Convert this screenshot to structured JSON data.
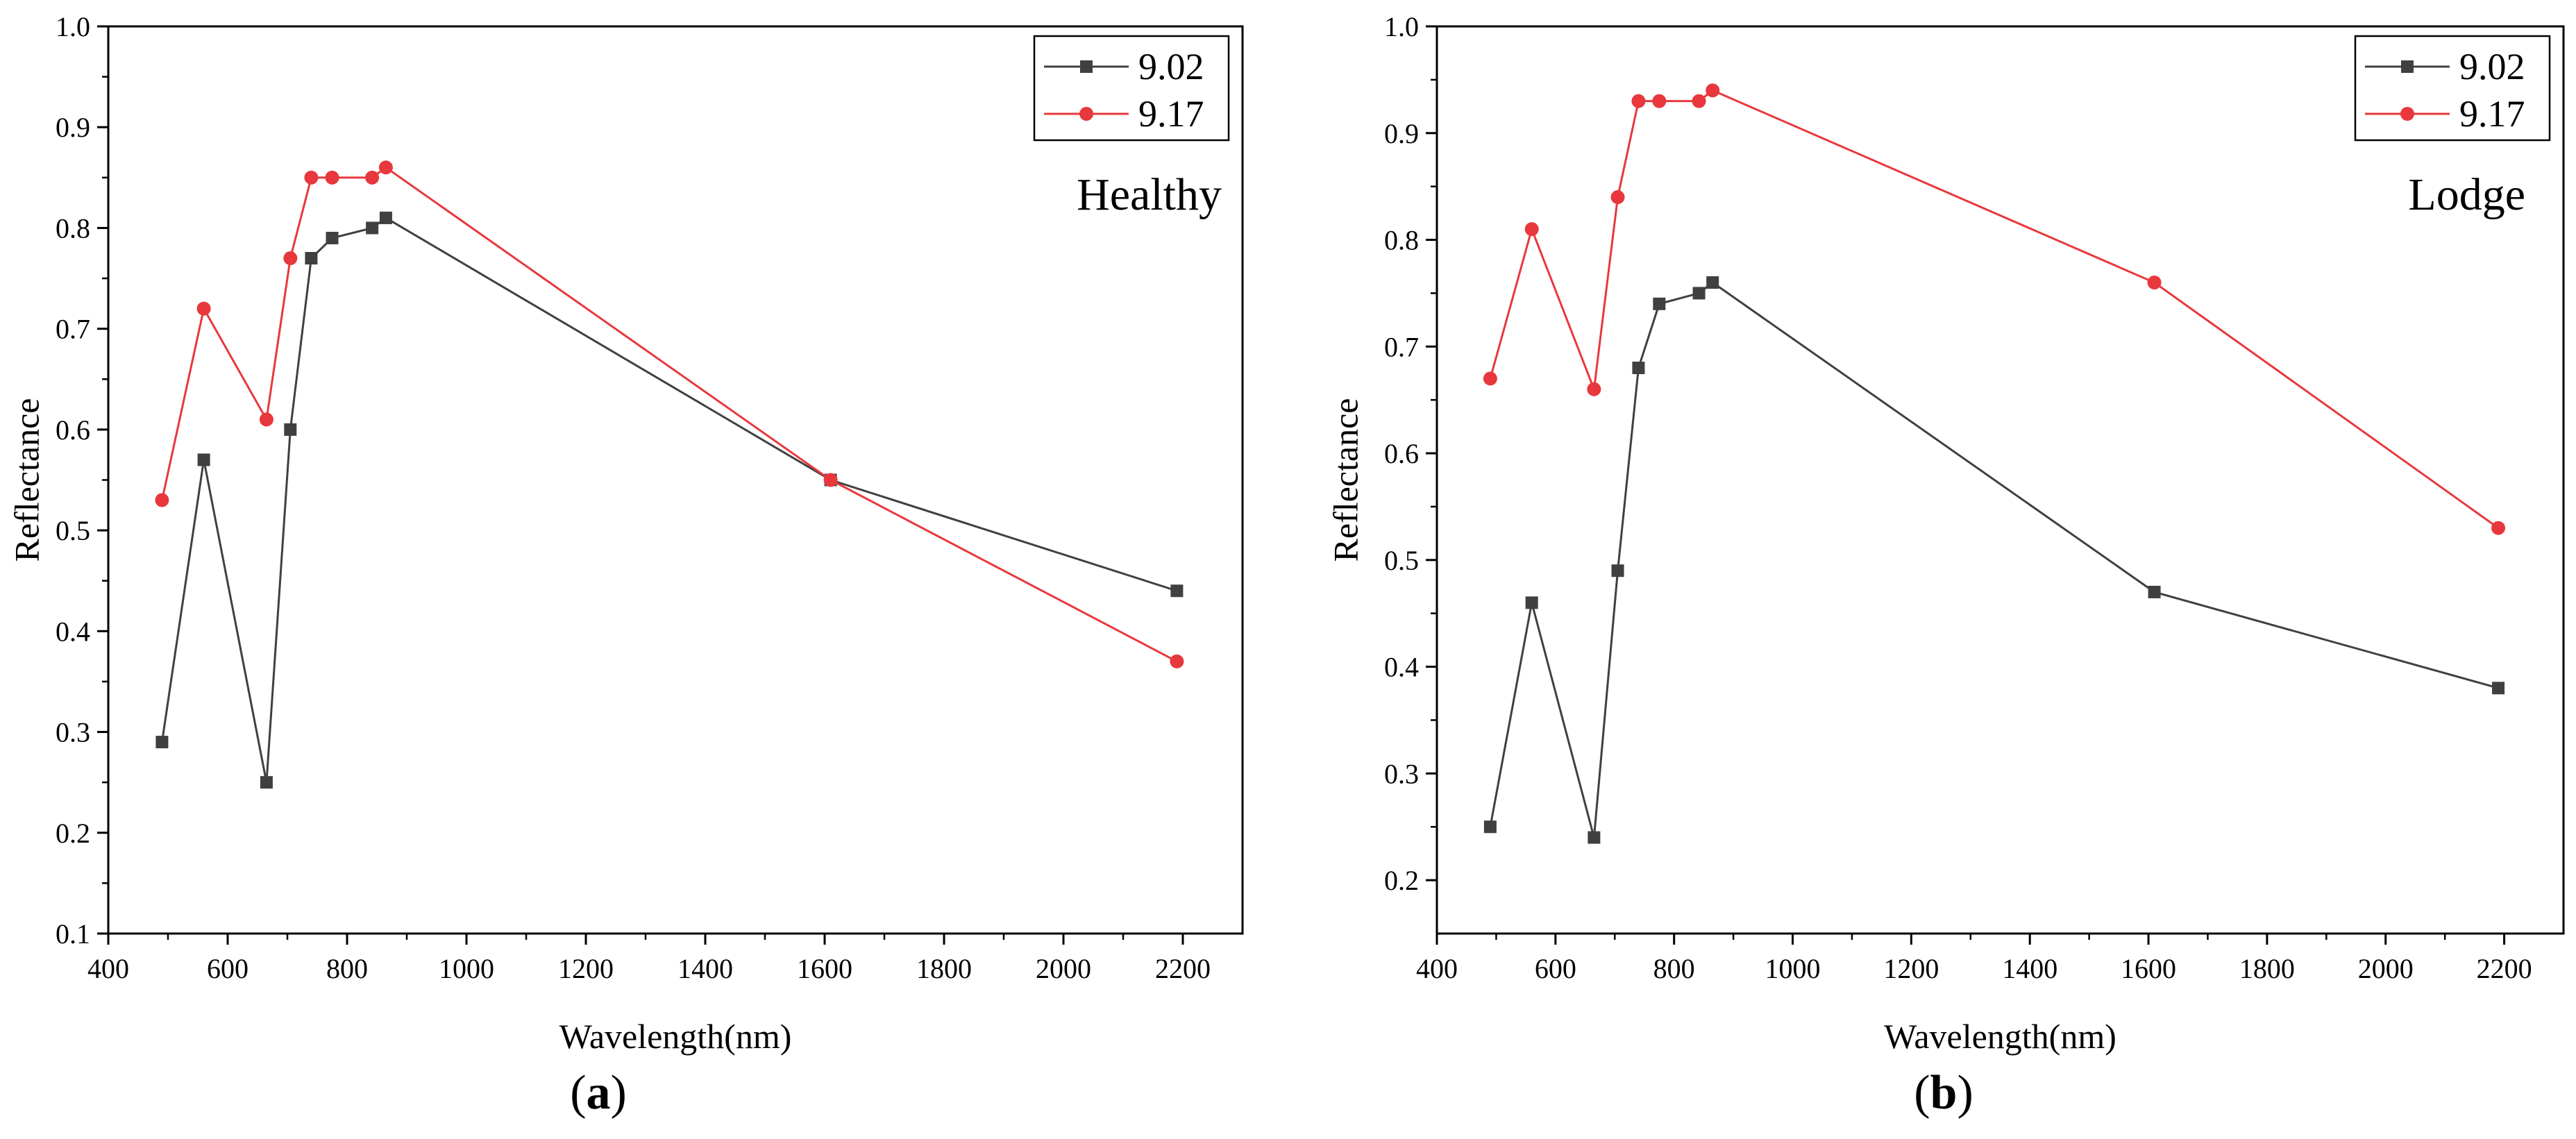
{
  "chart_data": [
    {
      "type": "line",
      "panel_label": "a",
      "annotation": "Healthy",
      "xlabel": "Wavelength(nm)",
      "ylabel": "Reflectance",
      "xlim": [
        400,
        2300
      ],
      "ylim": [
        0.1,
        1.0
      ],
      "xticks": [
        400,
        600,
        800,
        1000,
        1200,
        1400,
        1600,
        1800,
        2000,
        2200
      ],
      "yticks": [
        0.1,
        0.2,
        0.3,
        0.4,
        0.5,
        0.6,
        0.7,
        0.8,
        0.9,
        1.0
      ],
      "legend_position": "top-right",
      "grid": false,
      "x": [
        490,
        560,
        665,
        705,
        740,
        775,
        842,
        865,
        1610,
        2190
      ],
      "series": [
        {
          "name": "9.02",
          "color": "#404040",
          "marker": "square",
          "values": [
            0.29,
            0.57,
            0.25,
            0.6,
            0.77,
            0.79,
            0.8,
            0.81,
            0.55,
            0.44
          ]
        },
        {
          "name": "9.17",
          "color": "#e8383d",
          "marker": "circle",
          "values": [
            0.53,
            0.72,
            0.61,
            0.77,
            0.85,
            0.85,
            0.85,
            0.86,
            0.55,
            0.37
          ]
        }
      ]
    },
    {
      "type": "line",
      "panel_label": "b",
      "annotation": "Lodge",
      "xlabel": "Wavelength(nm)",
      "ylabel": "Reflectance",
      "xlim": [
        400,
        2300
      ],
      "ylim": [
        0.15,
        1.0
      ],
      "xticks": [
        400,
        600,
        800,
        1000,
        1200,
        1400,
        1600,
        1800,
        2000,
        2200
      ],
      "yticks": [
        0.2,
        0.3,
        0.4,
        0.5,
        0.6,
        0.7,
        0.8,
        0.9,
        1.0
      ],
      "legend_position": "top-right",
      "grid": false,
      "x": [
        490,
        560,
        665,
        705,
        740,
        775,
        842,
        865,
        1610,
        2190
      ],
      "series": [
        {
          "name": "9.02",
          "color": "#404040",
          "marker": "square",
          "values": [
            0.25,
            0.46,
            0.24,
            0.49,
            0.68,
            0.74,
            0.75,
            0.76,
            0.47,
            0.38
          ]
        },
        {
          "name": "9.17",
          "color": "#e8383d",
          "marker": "circle",
          "values": [
            0.67,
            0.81,
            0.66,
            0.84,
            0.93,
            0.93,
            0.93,
            0.94,
            0.76,
            0.53
          ]
        }
      ]
    }
  ]
}
